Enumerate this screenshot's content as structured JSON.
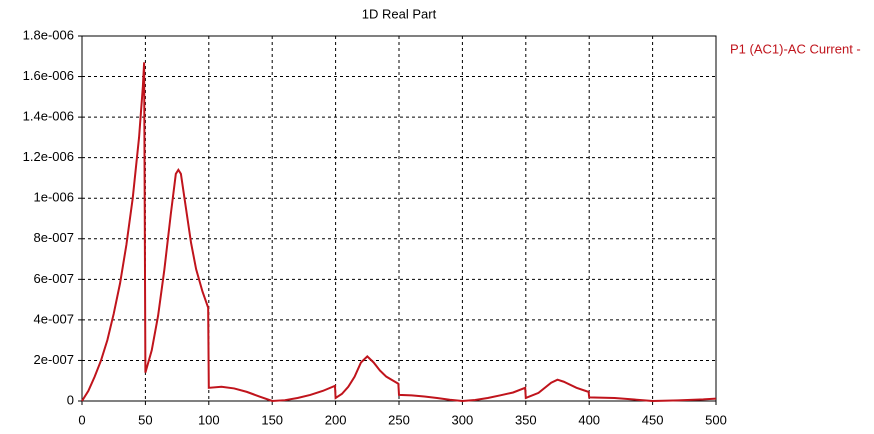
{
  "chart_data": {
    "type": "line",
    "title": "1D Real Part",
    "x": [
      0,
      5,
      10,
      15,
      20,
      25,
      30,
      35,
      40,
      45,
      48,
      49,
      50,
      55,
      60,
      65,
      70,
      74,
      76,
      78,
      82,
      86,
      90,
      95,
      99.5,
      100,
      110,
      120,
      130,
      140,
      150,
      160,
      170,
      180,
      190,
      199.5,
      200,
      205,
      210,
      215,
      220,
      225,
      230,
      235,
      240,
      249.5,
      250,
      260,
      270,
      280,
      290,
      300,
      310,
      320,
      330,
      340,
      349.5,
      350,
      360,
      370,
      375,
      380,
      390,
      399.5,
      400,
      420,
      440,
      450,
      470,
      490,
      500
    ],
    "series": [
      {
        "name": "P1 (AC1)-AC Current -",
        "color": "#c0141c",
        "values": [
          0,
          5e-08,
          1.2e-07,
          2e-07,
          3e-07,
          4.3e-07,
          5.8e-07,
          7.7e-07,
          1e-06,
          1.3e-06,
          1.55e-06,
          1.67e-06,
          1.4e-07,
          2.5e-07,
          4.2e-07,
          6.5e-07,
          9.2e-07,
          1.12e-06,
          1.14e-06,
          1.12e-06,
          9.5e-07,
          7.8e-07,
          6.5e-07,
          5.4e-07,
          4.6e-07,
          6.5e-08,
          7e-08,
          6.2e-08,
          4.5e-08,
          2.2e-08,
          0,
          4e-09,
          1.5e-08,
          3e-08,
          5e-08,
          7.5e-08,
          1.5e-08,
          3.5e-08,
          7e-08,
          1.2e-07,
          1.9e-07,
          2.2e-07,
          1.9e-07,
          1.5e-07,
          1.2e-07,
          8.5e-08,
          3e-08,
          2.8e-08,
          2.2e-08,
          1.5e-08,
          6e-09,
          0,
          5e-09,
          1.5e-08,
          2.8e-08,
          4.2e-08,
          6.5e-08,
          1.5e-08,
          4e-08,
          9e-08,
          1.05e-07,
          9.5e-08,
          6.5e-08,
          4.5e-08,
          1.8e-08,
          1.5e-08,
          5e-09,
          0,
          3e-09,
          8e-09,
          1.2e-08
        ]
      }
    ],
    "xlim": [
      0,
      500
    ],
    "xticks": [
      0,
      50,
      100,
      150,
      200,
      250,
      300,
      350,
      400,
      450,
      500
    ],
    "ylim": [
      0,
      1.8e-06
    ],
    "yticks": [
      0,
      {
        "value": 2e-07,
        "label": "2e-007"
      },
      {
        "value": 4e-07,
        "label": "4e-007"
      },
      {
        "value": 6e-07,
        "label": "6e-007"
      },
      {
        "value": 8e-07,
        "label": "8e-007"
      },
      {
        "value": 1e-06,
        "label": "1e-006"
      },
      {
        "value": 1.2e-06,
        "label": "1.2e-006"
      },
      {
        "value": 1.4e-06,
        "label": "1.4e-006"
      },
      {
        "value": 1.6e-06,
        "label": "1.6e-006"
      },
      {
        "value": 1.8e-06,
        "label": "1.8e-006"
      }
    ],
    "grid": true,
    "legend": "right"
  }
}
